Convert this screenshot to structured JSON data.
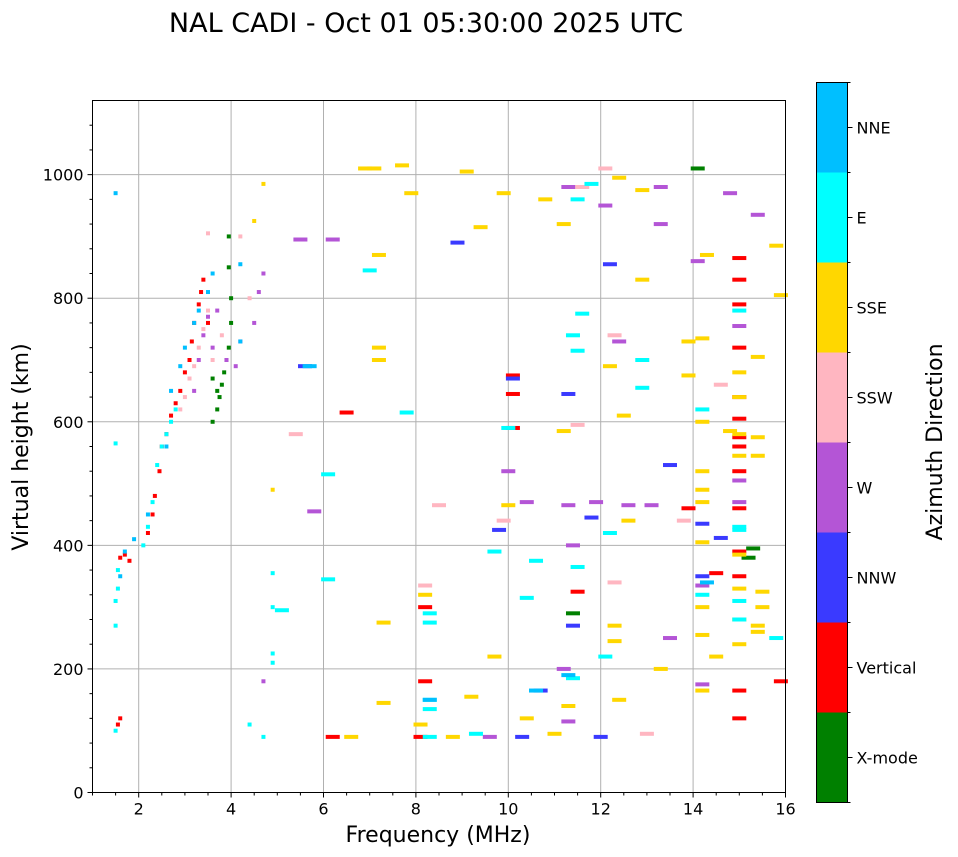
{
  "chart_data": {
    "type": "scatter",
    "title": "NAL CADI - Oct 01 05:30:00 2025 UTC",
    "xlabel": "Frequency (MHz)",
    "ylabel": "Virtual height (km)",
    "xlim": [
      1,
      16
    ],
    "ylim": [
      0,
      1120
    ],
    "xticks": [
      2,
      4,
      6,
      8,
      10,
      12,
      14,
      16
    ],
    "yticks": [
      0,
      200,
      400,
      600,
      800,
      1000
    ],
    "grid": true,
    "colorbar": {
      "label": "Azimuth Direction",
      "categories": [
        {
          "name": "X-mode",
          "color": "#008000"
        },
        {
          "name": "Vertical",
          "color": "#ff0000"
        },
        {
          "name": "NNW",
          "color": "#3a3aff"
        },
        {
          "name": "W",
          "color": "#b455d6"
        },
        {
          "name": "SSW",
          "color": "#ffb6c1"
        },
        {
          "name": "SSE",
          "color": "#ffd700"
        },
        {
          "name": "E",
          "color": "#00ffff"
        },
        {
          "name": "NNE",
          "color": "#00bfff"
        }
      ]
    },
    "series": [
      {
        "name": "X-mode",
        "points": [
          [
            3.6,
            600
          ],
          [
            3.7,
            620
          ],
          [
            3.75,
            640
          ],
          [
            3.8,
            660
          ],
          [
            3.85,
            680
          ],
          [
            3.9,
            700
          ],
          [
            3.95,
            720
          ],
          [
            4.0,
            760
          ],
          [
            4.0,
            800
          ],
          [
            3.95,
            850
          ],
          [
            3.95,
            900
          ],
          [
            3.7,
            650
          ],
          [
            3.6,
            670
          ],
          [
            14.1,
            1010
          ],
          [
            15.2,
            380
          ],
          [
            15.3,
            395
          ],
          [
            11.4,
            290
          ]
        ]
      },
      {
        "name": "Vertical",
        "points": [
          [
            1.6,
            380
          ],
          [
            1.7,
            385
          ],
          [
            1.8,
            375
          ],
          [
            2.2,
            420
          ],
          [
            2.3,
            450
          ],
          [
            2.35,
            480
          ],
          [
            2.45,
            520
          ],
          [
            2.5,
            560
          ],
          [
            2.6,
            580
          ],
          [
            2.7,
            610
          ],
          [
            2.8,
            630
          ],
          [
            2.9,
            650
          ],
          [
            3.0,
            680
          ],
          [
            3.1,
            700
          ],
          [
            3.15,
            730
          ],
          [
            3.2,
            760
          ],
          [
            3.3,
            790
          ],
          [
            3.35,
            810
          ],
          [
            3.4,
            830
          ],
          [
            3.5,
            760
          ],
          [
            1.55,
            110
          ],
          [
            1.6,
            120
          ],
          [
            15.0,
            120
          ],
          [
            15.0,
            165
          ],
          [
            15.0,
            350
          ],
          [
            15.0,
            390
          ],
          [
            15.0,
            460
          ],
          [
            15.0,
            520
          ],
          [
            15.0,
            560
          ],
          [
            15.0,
            575
          ],
          [
            15.0,
            605
          ],
          [
            15.0,
            640
          ],
          [
            15.0,
            720
          ],
          [
            15.0,
            790
          ],
          [
            15.0,
            830
          ],
          [
            15.0,
            865
          ],
          [
            10.1,
            675
          ],
          [
            10.1,
            645
          ],
          [
            10.1,
            590
          ],
          [
            8.2,
            300
          ],
          [
            8.2,
            180
          ],
          [
            8.1,
            90
          ],
          [
            6.2,
            90
          ],
          [
            6.5,
            615
          ],
          [
            11.5,
            325
          ],
          [
            14.5,
            355
          ],
          [
            15.9,
            180
          ],
          [
            13.9,
            460
          ]
        ]
      },
      {
        "name": "NNW",
        "points": [
          [
            8.9,
            890
          ],
          [
            10.1,
            670
          ],
          [
            9.8,
            425
          ],
          [
            11.8,
            445
          ],
          [
            12.2,
            855
          ],
          [
            13.5,
            530
          ],
          [
            14.2,
            435
          ],
          [
            14.2,
            350
          ],
          [
            10.7,
            165
          ],
          [
            10.3,
            90
          ],
          [
            11.3,
            645
          ],
          [
            5.6,
            690
          ],
          [
            12.0,
            90
          ],
          [
            11.4,
            270
          ],
          [
            14.6,
            412
          ]
        ]
      },
      {
        "name": "W",
        "points": [
          [
            3.2,
            650
          ],
          [
            3.3,
            700
          ],
          [
            3.4,
            740
          ],
          [
            3.5,
            770
          ],
          [
            3.6,
            720
          ],
          [
            3.7,
            780
          ],
          [
            3.9,
            700
          ],
          [
            4.1,
            690
          ],
          [
            4.2,
            730
          ],
          [
            4.5,
            760
          ],
          [
            4.6,
            810
          ],
          [
            4.7,
            840
          ],
          [
            5.5,
            895
          ],
          [
            6.2,
            895
          ],
          [
            10.0,
            520
          ],
          [
            10.4,
            470
          ],
          [
            11.3,
            465
          ],
          [
            11.4,
            400
          ],
          [
            12.6,
            465
          ],
          [
            13.1,
            465
          ],
          [
            13.3,
            980
          ],
          [
            13.3,
            920
          ],
          [
            14.1,
            860
          ],
          [
            14.2,
            175
          ],
          [
            15.0,
            755
          ],
          [
            15.0,
            505
          ],
          [
            15.0,
            470
          ],
          [
            14.2,
            335
          ],
          [
            11.2,
            200
          ],
          [
            11.3,
            115
          ],
          [
            9.6,
            90
          ],
          [
            4.7,
            180
          ],
          [
            5.8,
            455
          ],
          [
            11.9,
            470
          ],
          [
            12.4,
            730
          ],
          [
            13.5,
            250
          ],
          [
            15.4,
            935
          ],
          [
            14.8,
            970
          ],
          [
            12.1,
            950
          ],
          [
            11.3,
            980
          ]
        ]
      },
      {
        "name": "SSW",
        "points": [
          [
            2.9,
            620
          ],
          [
            3.0,
            640
          ],
          [
            3.1,
            670
          ],
          [
            3.2,
            690
          ],
          [
            3.3,
            720
          ],
          [
            3.4,
            750
          ],
          [
            3.5,
            780
          ],
          [
            3.5,
            905
          ],
          [
            3.6,
            700
          ],
          [
            3.8,
            740
          ],
          [
            4.2,
            900
          ],
          [
            4.4,
            800
          ],
          [
            8.2,
            335
          ],
          [
            8.5,
            465
          ],
          [
            9.9,
            440
          ],
          [
            11.5,
            595
          ],
          [
            12.3,
            340
          ],
          [
            12.3,
            740
          ],
          [
            13.8,
            440
          ],
          [
            14.6,
            660
          ],
          [
            11.6,
            980
          ],
          [
            12.1,
            1010
          ],
          [
            13.0,
            95
          ],
          [
            5.4,
            580
          ]
        ]
      },
      {
        "name": "SSE",
        "points": [
          [
            4.5,
            925
          ],
          [
            4.7,
            985
          ],
          [
            7.2,
            870
          ],
          [
            7.2,
            720
          ],
          [
            7.2,
            700
          ],
          [
            6.9,
            1010
          ],
          [
            7.1,
            1010
          ],
          [
            7.7,
            1015
          ],
          [
            7.9,
            970
          ],
          [
            9.1,
            1005
          ],
          [
            9.4,
            915
          ],
          [
            9.9,
            970
          ],
          [
            10.8,
            960
          ],
          [
            11.2,
            920
          ],
          [
            12.4,
            995
          ],
          [
            12.9,
            975
          ],
          [
            12.9,
            830
          ],
          [
            13.9,
            730
          ],
          [
            13.9,
            675
          ],
          [
            14.2,
            735
          ],
          [
            14.2,
            600
          ],
          [
            14.2,
            520
          ],
          [
            14.2,
            490
          ],
          [
            14.2,
            470
          ],
          [
            14.2,
            405
          ],
          [
            14.2,
            300
          ],
          [
            14.2,
            255
          ],
          [
            14.2,
            165
          ],
          [
            15.0,
            680
          ],
          [
            15.0,
            640
          ],
          [
            15.0,
            580
          ],
          [
            15.0,
            545
          ],
          [
            15.0,
            385
          ],
          [
            15.0,
            330
          ],
          [
            15.0,
            280
          ],
          [
            15.0,
            240
          ],
          [
            15.4,
            705
          ],
          [
            15.4,
            575
          ],
          [
            15.4,
            545
          ],
          [
            15.5,
            325
          ],
          [
            15.5,
            300
          ],
          [
            15.4,
            270
          ],
          [
            15.4,
            260
          ],
          [
            15.8,
            885
          ],
          [
            15.9,
            805
          ],
          [
            12.5,
            610
          ],
          [
            12.6,
            440
          ],
          [
            12.3,
            245
          ],
          [
            12.3,
            270
          ],
          [
            12.4,
            150
          ],
          [
            8.1,
            110
          ],
          [
            8.2,
            320
          ],
          [
            8.8,
            90
          ],
          [
            9.2,
            155
          ],
          [
            9.7,
            220
          ],
          [
            7.3,
            145
          ],
          [
            7.3,
            275
          ],
          [
            6.6,
            90
          ],
          [
            4.9,
            490
          ],
          [
            11.2,
            585
          ],
          [
            11.3,
            140
          ],
          [
            10.4,
            120
          ],
          [
            11.0,
            95
          ],
          [
            12.2,
            690
          ],
          [
            13.3,
            200
          ],
          [
            14.5,
            220
          ],
          [
            14.3,
            870
          ],
          [
            14.8,
            585
          ],
          [
            10.0,
            465
          ]
        ]
      },
      {
        "name": "E",
        "points": [
          [
            1.5,
            100
          ],
          [
            1.5,
            270
          ],
          [
            1.5,
            310
          ],
          [
            1.55,
            330
          ],
          [
            1.55,
            360
          ],
          [
            1.5,
            565
          ],
          [
            2.1,
            400
          ],
          [
            2.2,
            430
          ],
          [
            2.3,
            470
          ],
          [
            2.4,
            530
          ],
          [
            2.5,
            560
          ],
          [
            2.6,
            580
          ],
          [
            2.7,
            600
          ],
          [
            2.8,
            620
          ],
          [
            4.9,
            355
          ],
          [
            4.9,
            300
          ],
          [
            5.1,
            295
          ],
          [
            4.9,
            225
          ],
          [
            4.9,
            210
          ],
          [
            4.4,
            110
          ],
          [
            4.7,
            90
          ],
          [
            6.1,
            345
          ],
          [
            6.1,
            515
          ],
          [
            7.0,
            845
          ],
          [
            7.8,
            615
          ],
          [
            8.3,
            290
          ],
          [
            8.3,
            275
          ],
          [
            8.3,
            150
          ],
          [
            8.3,
            135
          ],
          [
            8.3,
            90
          ],
          [
            9.3,
            95
          ],
          [
            9.7,
            390
          ],
          [
            10.0,
            590
          ],
          [
            10.6,
            375
          ],
          [
            10.4,
            315
          ],
          [
            11.4,
            185
          ],
          [
            11.5,
            715
          ],
          [
            11.4,
            740
          ],
          [
            11.5,
            365
          ],
          [
            11.6,
            775
          ],
          [
            11.8,
            985
          ],
          [
            11.5,
            960
          ],
          [
            12.1,
            220
          ],
          [
            12.2,
            420
          ],
          [
            12.9,
            700
          ],
          [
            12.9,
            655
          ],
          [
            14.2,
            620
          ],
          [
            14.2,
            320
          ],
          [
            15.0,
            780
          ],
          [
            15.0,
            430
          ],
          [
            15.0,
            425
          ],
          [
            15.0,
            310
          ],
          [
            15.0,
            280
          ],
          [
            15.8,
            250
          ]
        ]
      },
      {
        "name": "NNE",
        "points": [
          [
            1.5,
            970
          ],
          [
            1.6,
            350
          ],
          [
            1.7,
            390
          ],
          [
            1.9,
            410
          ],
          [
            2.2,
            450
          ],
          [
            2.6,
            560
          ],
          [
            2.7,
            650
          ],
          [
            2.9,
            690
          ],
          [
            3.0,
            720
          ],
          [
            3.2,
            760
          ],
          [
            3.3,
            780
          ],
          [
            3.5,
            810
          ],
          [
            3.6,
            840
          ],
          [
            4.2,
            730
          ],
          [
            4.2,
            855
          ],
          [
            5.7,
            690
          ],
          [
            8.3,
            150
          ],
          [
            10.6,
            165
          ],
          [
            11.3,
            190
          ],
          [
            14.3,
            340
          ]
        ]
      }
    ]
  }
}
